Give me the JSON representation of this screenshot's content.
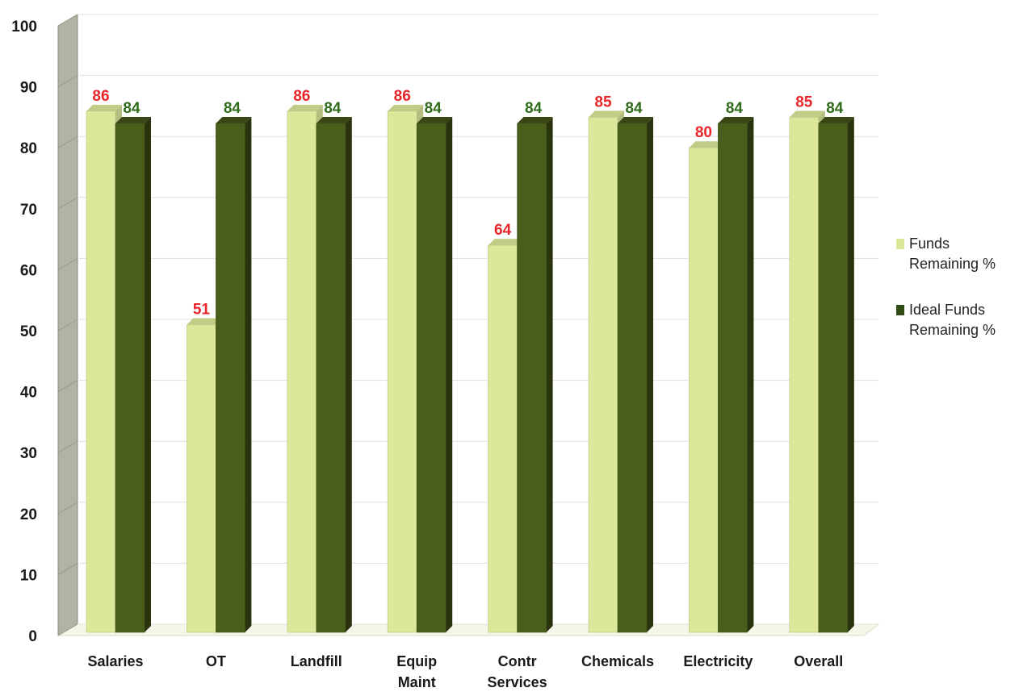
{
  "chart_data": {
    "type": "bar",
    "categories": [
      "Salaries",
      "OT",
      "Landfill",
      "Equip\nMaint",
      "Contr\nServices",
      "Chemicals",
      "Electricity",
      "Overall"
    ],
    "series": [
      {
        "name": "Funds Remaining %",
        "values": [
          86,
          51,
          86,
          86,
          64,
          85,
          80,
          85
        ],
        "color": "#dde79a",
        "label_color": "#e8262a"
      },
      {
        "name": "Ideal Funds Remaining %",
        "values": [
          84,
          84,
          84,
          84,
          84,
          84,
          84,
          84
        ],
        "color": "#4a5e1c",
        "label_color": "#2f6b1a"
      }
    ],
    "yticks": [
      0,
      10,
      20,
      30,
      40,
      50,
      60,
      70,
      80,
      90,
      100
    ],
    "ylim": [
      0,
      100
    ],
    "grid": true,
    "legend_position": "right",
    "style": "3d-clustered-column"
  }
}
